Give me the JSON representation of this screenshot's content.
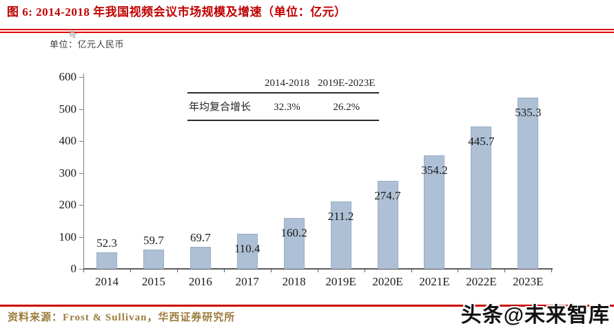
{
  "figure": {
    "title": "图 6: 2014-2018 年我国视频会议市场规模及增速（单位：亿元）",
    "unit_label": "单位：亿元人民币",
    "source": "资料来源：Frost & Sullivan，华西证券研究所",
    "watermark": "头条@未来智库",
    "colors": {
      "title_red": "#c00000",
      "rule_red": "#e00000",
      "bottom_red": "#cc0000",
      "bar_fill": "#aec0d6",
      "bar_border": "#97acc4",
      "axis_gray": "#7f7f7f",
      "source_gold": "#9c7b3c"
    }
  },
  "cagr_table": {
    "row_label": "年均复合增长",
    "col_headers": [
      "2014-2018",
      "2019E-2023E"
    ],
    "values": [
      "32.3%",
      "26.2%"
    ]
  },
  "chart_data": {
    "type": "bar",
    "title": "2014-2018 年我国视频会议市场规模及增速",
    "categories": [
      "2014",
      "2015",
      "2016",
      "2017",
      "2018",
      "2019E",
      "2020E",
      "2021E",
      "2022E",
      "2023E"
    ],
    "values": [
      52.3,
      59.7,
      69.7,
      110.4,
      160.2,
      211.2,
      274.7,
      354.2,
      445.7,
      535.3
    ],
    "xlabel": "",
    "ylabel": "单位：亿元人民币",
    "ylim": [
      0,
      600
    ],
    "yticks": [
      0,
      100,
      200,
      300,
      400,
      500,
      600
    ],
    "grid": false,
    "legend_position": "none",
    "value_labels_shown": true
  }
}
